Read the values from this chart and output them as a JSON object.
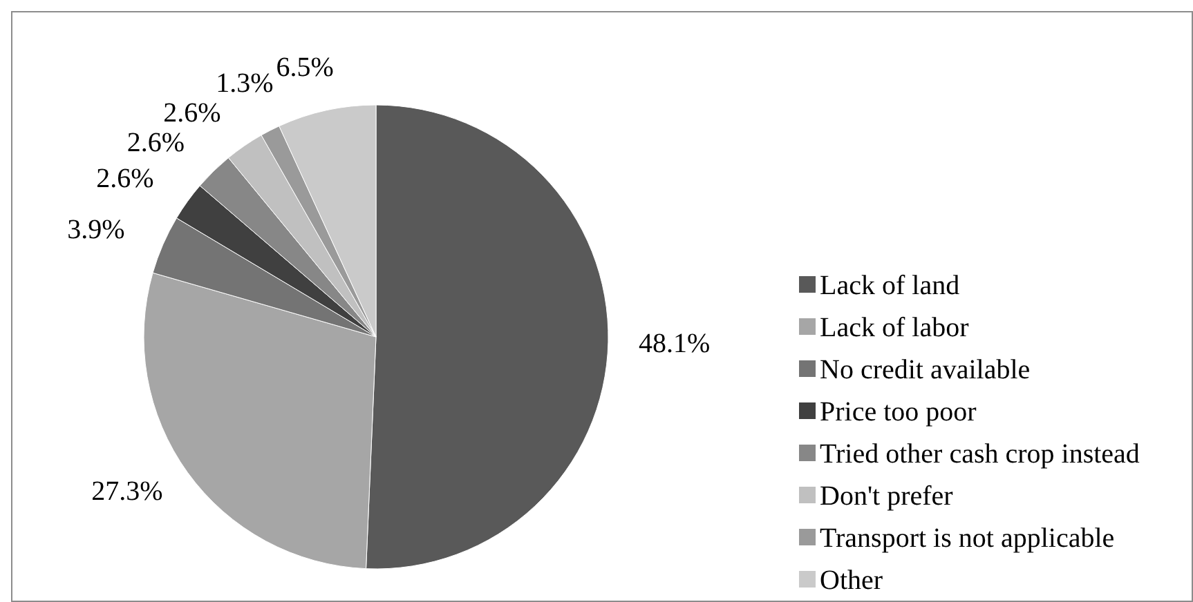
{
  "chart_data": {
    "type": "pie",
    "categories": [
      "Lack of land",
      "Lack of labor",
      "No credit available",
      "Price too poor",
      "Tried other cash crop instead",
      "Don't prefer",
      "Transport is not applicable",
      "Other"
    ],
    "values": [
      48.1,
      27.3,
      3.9,
      2.6,
      2.6,
      2.6,
      1.3,
      6.5
    ],
    "colors": [
      "#595959",
      "#a6a6a6",
      "#747474",
      "#404040",
      "#878787",
      "#c0c0c0",
      "#9a9a9a",
      "#cacaca"
    ],
    "value_labels": [
      "48.1%",
      "27.3%",
      "3.9%",
      "2.6%",
      "2.6%",
      "2.6%",
      "1.3%",
      "6.5%"
    ],
    "legend": "right"
  }
}
